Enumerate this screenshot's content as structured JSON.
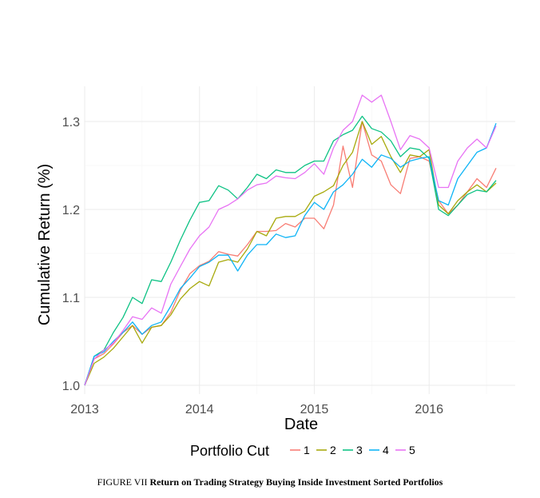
{
  "chart_data": {
    "type": "line",
    "title": "",
    "xlabel": "Date",
    "ylabel": "Cumulative Return (%)",
    "xlim": [
      2013.0,
      2016.75
    ],
    "ylim": [
      0.99,
      1.34
    ],
    "x_ticks": [
      2013,
      2014,
      2015,
      2016
    ],
    "x_tick_labels": [
      "2013",
      "2014",
      "2015",
      "2016"
    ],
    "y_ticks": [
      1.0,
      1.1,
      1.2,
      1.3
    ],
    "y_tick_labels": [
      "1.0",
      "1.1",
      "1.2",
      "1.3"
    ],
    "grid": true,
    "legend_title": "Portfolio Cut",
    "legend_position": "bottom",
    "x": [
      2013.0,
      2013.083,
      2013.167,
      2013.25,
      2013.333,
      2013.417,
      2013.5,
      2013.583,
      2013.667,
      2013.75,
      2013.833,
      2013.917,
      2014.0,
      2014.083,
      2014.167,
      2014.25,
      2014.333,
      2014.417,
      2014.5,
      2014.583,
      2014.667,
      2014.75,
      2014.833,
      2014.917,
      2015.0,
      2015.083,
      2015.167,
      2015.25,
      2015.333,
      2015.417,
      2015.5,
      2015.583,
      2015.667,
      2015.75,
      2015.833,
      2015.917,
      2016.0,
      2016.083,
      2016.167,
      2016.25,
      2016.333,
      2016.417,
      2016.5,
      2016.583
    ],
    "series": [
      {
        "name": "1",
        "color": "#F8766D",
        "values": [
          1.0,
          1.03,
          1.036,
          1.047,
          1.06,
          1.068,
          1.058,
          1.066,
          1.068,
          1.083,
          1.108,
          1.127,
          1.136,
          1.141,
          1.152,
          1.149,
          1.147,
          1.16,
          1.175,
          1.175,
          1.176,
          1.184,
          1.18,
          1.19,
          1.19,
          1.178,
          1.205,
          1.272,
          1.225,
          1.3,
          1.262,
          1.255,
          1.228,
          1.218,
          1.258,
          1.26,
          1.255,
          1.21,
          1.195,
          1.205,
          1.22,
          1.235,
          1.225,
          1.247
        ]
      },
      {
        "name": "2",
        "color": "#A3A500",
        "values": [
          1.0,
          1.025,
          1.032,
          1.042,
          1.055,
          1.068,
          1.048,
          1.066,
          1.068,
          1.08,
          1.098,
          1.11,
          1.118,
          1.113,
          1.14,
          1.143,
          1.14,
          1.155,
          1.175,
          1.17,
          1.19,
          1.192,
          1.192,
          1.198,
          1.215,
          1.22,
          1.227,
          1.25,
          1.265,
          1.3,
          1.274,
          1.283,
          1.26,
          1.242,
          1.262,
          1.26,
          1.268,
          1.205,
          1.195,
          1.21,
          1.22,
          1.228,
          1.22,
          1.23
        ]
      },
      {
        "name": "3",
        "color": "#00BF7D",
        "values": [
          1.0,
          1.033,
          1.04,
          1.06,
          1.077,
          1.1,
          1.093,
          1.12,
          1.118,
          1.14,
          1.165,
          1.188,
          1.208,
          1.21,
          1.227,
          1.222,
          1.212,
          1.225,
          1.24,
          1.235,
          1.245,
          1.242,
          1.242,
          1.25,
          1.255,
          1.255,
          1.278,
          1.285,
          1.29,
          1.306,
          1.292,
          1.288,
          1.278,
          1.26,
          1.27,
          1.268,
          1.258,
          1.2,
          1.193,
          1.205,
          1.217,
          1.222,
          1.22,
          1.233
        ]
      },
      {
        "name": "4",
        "color": "#00B0F6",
        "values": [
          1.0,
          1.033,
          1.038,
          1.05,
          1.06,
          1.072,
          1.058,
          1.068,
          1.072,
          1.09,
          1.11,
          1.122,
          1.135,
          1.14,
          1.148,
          1.148,
          1.13,
          1.148,
          1.16,
          1.16,
          1.172,
          1.168,
          1.17,
          1.193,
          1.208,
          1.2,
          1.22,
          1.228,
          1.24,
          1.257,
          1.248,
          1.262,
          1.258,
          1.248,
          1.255,
          1.258,
          1.26,
          1.21,
          1.205,
          1.235,
          1.25,
          1.265,
          1.27,
          1.298
        ]
      },
      {
        "name": "5",
        "color": "#E76BF3",
        "values": [
          1.0,
          1.03,
          1.04,
          1.048,
          1.062,
          1.078,
          1.075,
          1.088,
          1.082,
          1.115,
          1.135,
          1.155,
          1.17,
          1.18,
          1.2,
          1.205,
          1.212,
          1.222,
          1.228,
          1.23,
          1.238,
          1.236,
          1.235,
          1.242,
          1.252,
          1.24,
          1.27,
          1.29,
          1.3,
          1.33,
          1.322,
          1.33,
          1.3,
          1.268,
          1.284,
          1.28,
          1.27,
          1.225,
          1.225,
          1.255,
          1.27,
          1.28,
          1.27,
          1.295
        ]
      }
    ]
  },
  "caption": {
    "prefix": "FIGURE VII",
    "title": "Return on Trading Strategy Buying Inside Investment Sorted Portfolios"
  }
}
